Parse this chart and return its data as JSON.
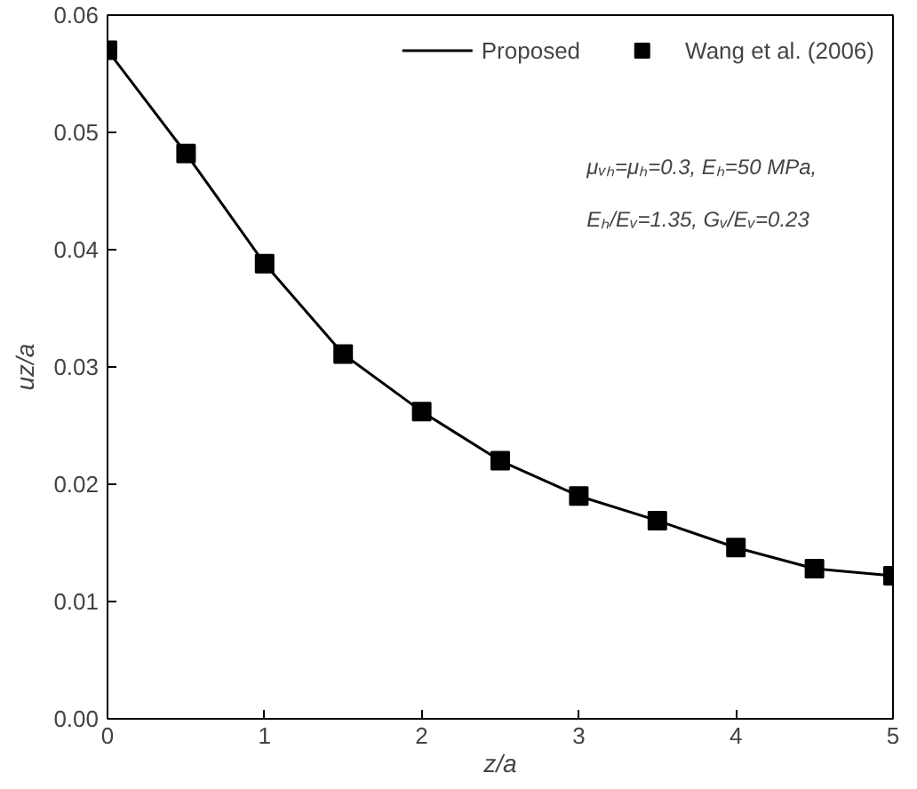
{
  "chart_data": {
    "type": "line",
    "xlabel": "z/a",
    "ylabel": "uz/a",
    "x": [
      0,
      0.5,
      1,
      1.5,
      2,
      2.5,
      3,
      3.5,
      4,
      4.5,
      5
    ],
    "series": [
      {
        "name": "Proposed",
        "color": "#000000",
        "marker": "none",
        "line_style": "solid",
        "values": [
          0.057,
          0.0482,
          0.0388,
          0.0311,
          0.0262,
          0.022,
          0.019,
          0.0169,
          0.0146,
          0.0128,
          0.0122
        ]
      },
      {
        "name": "Wang et al. (2006)",
        "type": "scatter",
        "color": "#000000",
        "marker": "square",
        "values": [
          0.057,
          0.0482,
          0.0388,
          0.0311,
          0.0262,
          0.022,
          0.019,
          0.0169,
          0.0146,
          0.0128,
          0.0122
        ]
      }
    ],
    "xlim": [
      0,
      5
    ],
    "xticks": [
      0,
      1,
      2,
      3,
      4,
      5
    ],
    "ylim": [
      0,
      0.06
    ],
    "yticks": [
      {
        "value": 0,
        "label": "0.00"
      },
      {
        "value": 0.01,
        "label": "0.01"
      },
      {
        "value": 0.02,
        "label": "0.02"
      },
      {
        "value": 0.03,
        "label": "0.03"
      },
      {
        "value": 0.04,
        "label": "0.04"
      },
      {
        "value": 0.05,
        "label": "0.05"
      },
      {
        "value": 0.06,
        "label": "0.06"
      }
    ],
    "grid": false,
    "legend": "top right",
    "annotations": [
      "μᵥₕ=μₕ=0.3, Eₕ=50 MPa,",
      "Eₕ/Eᵥ=1.35, Gᵥ/Eᵥ=0.23"
    ]
  }
}
